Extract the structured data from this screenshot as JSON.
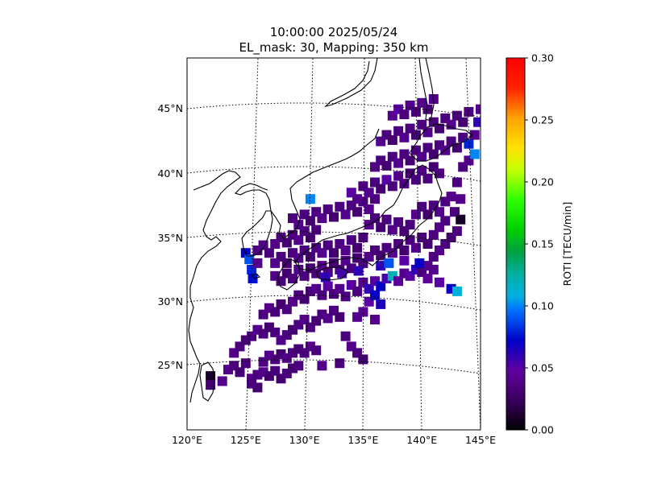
{
  "chart_data": {
    "type": "heatmap",
    "title": "10:00:00 2025/05/24",
    "subtitle": "EL_mask: 30, Mapping: 350 km",
    "x_ticks": [
      "120°E",
      "125°E",
      "130°E",
      "135°E",
      "140°E",
      "145°E"
    ],
    "x_tick_values": [
      120,
      125,
      130,
      135,
      140,
      145
    ],
    "y_ticks": [
      "25°N",
      "30°N",
      "35°N",
      "40°N",
      "45°N"
    ],
    "y_tick_values": [
      25,
      30,
      35,
      40,
      45
    ],
    "xlim": [
      120,
      145
    ],
    "ylim": [
      20,
      49
    ],
    "grid": true,
    "colorbar": {
      "label": "ROTI [TECU/min]",
      "min": 0.0,
      "max": 0.3,
      "ticks": [
        "0.00",
        "0.05",
        "0.10",
        "0.15",
        "0.20",
        "0.25",
        "0.30"
      ],
      "tick_values": [
        0.0,
        0.05,
        0.1,
        0.15,
        0.2,
        0.25,
        0.3
      ],
      "colormap": "nipy_spectral"
    },
    "pixels": [
      [
        125.5,
        24.0,
        0.04
      ],
      [
        126.0,
        24.3,
        0.035
      ],
      [
        126.5,
        24.5,
        0.04
      ],
      [
        127.0,
        24.2,
        0.03
      ],
      [
        127.5,
        24.6,
        0.035
      ],
      [
        128.0,
        24.0,
        0.03
      ],
      [
        128.5,
        24.4,
        0.035
      ],
      [
        129.0,
        24.8,
        0.03
      ],
      [
        129.5,
        25.0,
        0.035
      ],
      [
        123.5,
        24.7,
        0.04
      ],
      [
        124.0,
        25.0,
        0.035
      ],
      [
        124.5,
        24.5,
        0.03
      ],
      [
        125.0,
        25.2,
        0.035
      ],
      [
        122.0,
        24.2,
        0.01
      ],
      [
        122.0,
        23.5,
        0.03
      ],
      [
        123.0,
        23.8,
        0.04
      ],
      [
        125.5,
        23.6,
        0.035
      ],
      [
        126.0,
        23.3,
        0.03
      ],
      [
        126.5,
        25.3,
        0.035
      ],
      [
        127.0,
        25.8,
        0.04
      ],
      [
        127.5,
        25.5,
        0.035
      ],
      [
        128.0,
        25.9,
        0.03
      ],
      [
        128.5,
        25.6,
        0.04
      ],
      [
        129.0,
        26.0,
        0.035
      ],
      [
        129.5,
        26.3,
        0.03
      ],
      [
        130.0,
        26.0,
        0.035
      ],
      [
        130.5,
        26.5,
        0.04
      ],
      [
        131.0,
        26.2,
        0.035
      ],
      [
        124.0,
        26.0,
        0.04
      ],
      [
        124.5,
        26.5,
        0.035
      ],
      [
        125.0,
        27.0,
        0.03
      ],
      [
        125.5,
        27.3,
        0.035
      ],
      [
        126.0,
        27.8,
        0.04
      ],
      [
        126.5,
        27.5,
        0.035
      ],
      [
        127.0,
        28.0,
        0.03
      ],
      [
        127.5,
        27.6,
        0.035
      ],
      [
        128.0,
        27.0,
        0.04
      ],
      [
        128.5,
        27.4,
        0.035
      ],
      [
        129.0,
        27.8,
        0.03
      ],
      [
        129.5,
        28.2,
        0.035
      ],
      [
        130.0,
        28.6,
        0.04
      ],
      [
        130.5,
        28.0,
        0.035
      ],
      [
        131.0,
        28.5,
        0.03
      ],
      [
        131.5,
        29.0,
        0.035
      ],
      [
        132.0,
        28.7,
        0.04
      ],
      [
        132.5,
        29.3,
        0.035
      ],
      [
        133.0,
        28.8,
        0.03
      ],
      [
        133.5,
        27.3,
        0.035
      ],
      [
        134.0,
        26.5,
        0.04
      ],
      [
        134.5,
        26.0,
        0.035
      ],
      [
        135.0,
        25.5,
        0.03
      ],
      [
        133.0,
        25.2,
        0.035
      ],
      [
        131.5,
        25.0,
        0.04
      ],
      [
        126.5,
        29.0,
        0.035
      ],
      [
        127.0,
        29.5,
        0.04
      ],
      [
        127.5,
        29.2,
        0.035
      ],
      [
        128.0,
        29.8,
        0.03
      ],
      [
        128.5,
        29.4,
        0.035
      ],
      [
        129.0,
        30.0,
        0.04
      ],
      [
        129.5,
        30.5,
        0.035
      ],
      [
        130.0,
        30.2,
        0.03
      ],
      [
        130.5,
        30.8,
        0.035
      ],
      [
        131.0,
        31.0,
        0.04
      ],
      [
        131.5,
        30.5,
        0.035
      ],
      [
        132.0,
        31.2,
        0.05
      ],
      [
        132.5,
        30.6,
        0.035
      ],
      [
        133.0,
        31.0,
        0.04
      ],
      [
        133.5,
        30.4,
        0.035
      ],
      [
        134.0,
        31.3,
        0.05
      ],
      [
        134.5,
        30.8,
        0.035
      ],
      [
        135.0,
        31.5,
        0.04
      ],
      [
        135.5,
        31.0,
        0.06
      ],
      [
        136.0,
        31.6,
        0.05
      ],
      [
        136.5,
        31.2,
        0.07
      ],
      [
        137.0,
        31.8,
        0.055
      ],
      [
        137.5,
        32.0,
        0.12
      ],
      [
        138.0,
        31.6,
        0.045
      ],
      [
        138.5,
        32.2,
        0.04
      ],
      [
        139.0,
        32.0,
        0.05
      ],
      [
        139.5,
        32.5,
        0.06
      ],
      [
        135.5,
        30.0,
        0.05
      ],
      [
        136.0,
        30.5,
        0.07
      ],
      [
        136.5,
        29.8,
        0.065
      ],
      [
        135.0,
        29.2,
        0.045
      ],
      [
        134.5,
        28.8,
        0.04
      ],
      [
        136.0,
        28.6,
        0.04
      ],
      [
        140.0,
        32.3,
        0.035
      ],
      [
        140.5,
        32.8,
        0.04
      ],
      [
        141.0,
        33.5,
        0.035
      ],
      [
        141.5,
        34.0,
        0.04
      ],
      [
        142.0,
        34.5,
        0.035
      ],
      [
        142.5,
        35.0,
        0.03
      ],
      [
        143.0,
        35.5,
        0.035
      ],
      [
        142.5,
        31.0,
        0.07
      ],
      [
        143.0,
        30.8,
        0.11
      ],
      [
        141.5,
        31.5,
        0.05
      ],
      [
        140.5,
        31.8,
        0.045
      ],
      [
        141.0,
        32.5,
        0.04
      ],
      [
        125.0,
        33.8,
        0.07
      ],
      [
        125.3,
        33.3,
        0.09
      ],
      [
        125.5,
        32.5,
        0.08
      ],
      [
        125.6,
        31.8,
        0.075
      ],
      [
        126.0,
        33.0,
        0.04
      ],
      [
        126.0,
        34.0,
        0.035
      ],
      [
        126.5,
        34.4,
        0.04
      ],
      [
        127.0,
        33.8,
        0.035
      ],
      [
        127.5,
        34.5,
        0.04
      ],
      [
        128.0,
        35.0,
        0.035
      ],
      [
        128.5,
        34.6,
        0.03
      ],
      [
        129.0,
        35.2,
        0.035
      ],
      [
        129.5,
        34.8,
        0.04
      ],
      [
        130.0,
        35.5,
        0.035
      ],
      [
        130.5,
        35.0,
        0.03
      ],
      [
        131.0,
        35.6,
        0.035
      ],
      [
        127.5,
        33.0,
        0.04
      ],
      [
        128.0,
        33.5,
        0.035
      ],
      [
        128.5,
        33.0,
        0.03
      ],
      [
        129.0,
        33.8,
        0.035
      ],
      [
        129.5,
        33.4,
        0.04
      ],
      [
        130.0,
        34.0,
        0.035
      ],
      [
        130.5,
        33.5,
        0.03
      ],
      [
        131.0,
        34.2,
        0.035
      ],
      [
        131.5,
        33.8,
        0.04
      ],
      [
        132.0,
        34.4,
        0.035
      ],
      [
        132.5,
        33.8,
        0.03
      ],
      [
        133.0,
        34.5,
        0.035
      ],
      [
        133.5,
        34.0,
        0.04
      ],
      [
        134.0,
        34.8,
        0.035
      ],
      [
        134.5,
        34.2,
        0.03
      ],
      [
        135.0,
        35.0,
        0.035
      ],
      [
        127.5,
        32.0,
        0.04
      ],
      [
        128.0,
        31.6,
        0.035
      ],
      [
        128.5,
        32.2,
        0.03
      ],
      [
        129.0,
        31.8,
        0.035
      ],
      [
        129.5,
        32.5,
        0.04
      ],
      [
        130.0,
        32.0,
        0.035
      ],
      [
        130.5,
        32.6,
        0.03
      ],
      [
        131.0,
        32.2,
        0.035
      ],
      [
        131.5,
        32.8,
        0.04
      ],
      [
        132.0,
        32.3,
        0.035
      ],
      [
        132.5,
        33.0,
        0.03
      ],
      [
        133.0,
        32.5,
        0.035
      ],
      [
        133.5,
        33.2,
        0.04
      ],
      [
        134.0,
        32.6,
        0.035
      ],
      [
        134.5,
        33.4,
        0.03
      ],
      [
        135.0,
        33.0,
        0.035
      ],
      [
        135.5,
        33.5,
        0.04
      ],
      [
        136.0,
        34.0,
        0.035
      ],
      [
        136.5,
        33.6,
        0.03
      ],
      [
        137.0,
        34.2,
        0.035
      ],
      [
        137.5,
        33.8,
        0.04
      ],
      [
        138.0,
        34.5,
        0.035
      ],
      [
        138.5,
        34.0,
        0.03
      ],
      [
        139.0,
        34.8,
        0.035
      ],
      [
        139.5,
        34.2,
        0.04
      ],
      [
        140.0,
        35.0,
        0.035
      ],
      [
        140.5,
        34.5,
        0.03
      ],
      [
        141.0,
        35.2,
        0.035
      ],
      [
        141.5,
        35.8,
        0.04
      ],
      [
        142.0,
        36.3,
        0.035
      ],
      [
        129.0,
        36.5,
        0.035
      ],
      [
        129.5,
        36.0,
        0.04
      ],
      [
        130.0,
        36.8,
        0.035
      ],
      [
        130.5,
        36.3,
        0.03
      ],
      [
        131.0,
        37.0,
        0.035
      ],
      [
        130.5,
        38.0,
        0.1
      ],
      [
        131.5,
        36.5,
        0.04
      ],
      [
        132.0,
        37.2,
        0.035
      ],
      [
        132.5,
        36.6,
        0.03
      ],
      [
        133.0,
        37.4,
        0.035
      ],
      [
        133.5,
        36.8,
        0.04
      ],
      [
        134.0,
        37.5,
        0.035
      ],
      [
        134.5,
        37.0,
        0.03
      ],
      [
        135.0,
        37.8,
        0.035
      ],
      [
        135.5,
        37.2,
        0.04
      ],
      [
        136.0,
        38.0,
        0.035
      ],
      [
        135.5,
        36.0,
        0.04
      ],
      [
        136.0,
        36.5,
        0.035
      ],
      [
        136.5,
        35.8,
        0.03
      ],
      [
        137.0,
        36.4,
        0.035
      ],
      [
        137.5,
        35.6,
        0.04
      ],
      [
        138.0,
        36.2,
        0.035
      ],
      [
        138.5,
        35.5,
        0.03
      ],
      [
        139.0,
        36.0,
        0.035
      ],
      [
        139.5,
        36.8,
        0.04
      ],
      [
        140.0,
        37.4,
        0.035
      ],
      [
        140.5,
        36.8,
        0.03
      ],
      [
        141.0,
        37.5,
        0.035
      ],
      [
        141.5,
        37.0,
        0.04
      ],
      [
        142.0,
        37.8,
        0.035
      ],
      [
        142.5,
        38.2,
        0.04
      ],
      [
        134.0,
        38.5,
        0.05
      ],
      [
        134.5,
        38.0,
        0.04
      ],
      [
        135.0,
        39.0,
        0.035
      ],
      [
        135.5,
        38.5,
        0.04
      ],
      [
        136.0,
        39.3,
        0.035
      ],
      [
        136.5,
        38.8,
        0.03
      ],
      [
        137.0,
        39.5,
        0.05
      ],
      [
        137.5,
        39.0,
        0.035
      ],
      [
        138.0,
        39.8,
        0.04
      ],
      [
        138.5,
        39.2,
        0.035
      ],
      [
        139.0,
        40.0,
        0.03
      ],
      [
        139.5,
        39.5,
        0.035
      ],
      [
        140.0,
        40.2,
        0.04
      ],
      [
        140.5,
        39.6,
        0.035
      ],
      [
        141.0,
        40.5,
        0.03
      ],
      [
        141.5,
        40.0,
        0.035
      ],
      [
        136.0,
        40.5,
        0.04
      ],
      [
        136.5,
        41.0,
        0.035
      ],
      [
        137.0,
        40.6,
        0.03
      ],
      [
        137.5,
        41.3,
        0.035
      ],
      [
        138.0,
        40.8,
        0.04
      ],
      [
        138.5,
        41.5,
        0.035
      ],
      [
        139.0,
        41.0,
        0.03
      ],
      [
        139.5,
        41.8,
        0.035
      ],
      [
        140.0,
        41.3,
        0.04
      ],
      [
        140.5,
        42.0,
        0.035
      ],
      [
        141.0,
        41.5,
        0.03
      ],
      [
        141.5,
        42.2,
        0.035
      ],
      [
        142.0,
        41.8,
        0.04
      ],
      [
        142.5,
        42.5,
        0.035
      ],
      [
        143.0,
        42.0,
        0.03
      ],
      [
        143.5,
        42.8,
        0.035
      ],
      [
        136.5,
        42.5,
        0.04
      ],
      [
        137.0,
        43.0,
        0.035
      ],
      [
        137.5,
        42.6,
        0.03
      ],
      [
        138.0,
        43.3,
        0.035
      ],
      [
        138.5,
        42.8,
        0.04
      ],
      [
        139.0,
        43.5,
        0.035
      ],
      [
        139.5,
        43.0,
        0.03
      ],
      [
        140.0,
        43.8,
        0.035
      ],
      [
        140.5,
        43.2,
        0.04
      ],
      [
        141.0,
        44.0,
        0.035
      ],
      [
        141.5,
        43.5,
        0.03
      ],
      [
        142.0,
        44.3,
        0.035
      ],
      [
        142.5,
        43.8,
        0.04
      ],
      [
        143.0,
        44.5,
        0.035
      ],
      [
        143.5,
        44.0,
        0.03
      ],
      [
        144.0,
        44.8,
        0.035
      ],
      [
        137.5,
        44.5,
        0.04
      ],
      [
        138.0,
        45.0,
        0.05
      ],
      [
        138.5,
        44.6,
        0.035
      ],
      [
        139.0,
        45.3,
        0.04
      ],
      [
        139.5,
        44.8,
        0.035
      ],
      [
        140.0,
        45.5,
        0.04
      ],
      [
        140.5,
        45.0,
        0.035
      ],
      [
        141.0,
        45.8,
        0.04
      ],
      [
        143.5,
        40.5,
        0.035
      ],
      [
        144.0,
        41.0,
        0.04
      ],
      [
        144.5,
        41.5,
        0.1
      ],
      [
        144.0,
        42.3,
        0.08
      ],
      [
        144.5,
        43.0,
        0.04
      ],
      [
        144.8,
        44.0,
        0.06
      ],
      [
        145.0,
        45.0,
        0.04
      ],
      [
        143.0,
        39.3,
        0.035
      ],
      [
        143.3,
        38.0,
        0.04
      ],
      [
        142.8,
        37.0,
        0.035
      ],
      [
        143.3,
        36.4,
        0.01
      ],
      [
        136.5,
        32.8,
        0.06
      ],
      [
        137.2,
        33.0,
        0.09
      ],
      [
        138.5,
        33.2,
        0.05
      ],
      [
        139.8,
        33.0,
        0.07
      ],
      [
        134.6,
        32.4,
        0.06
      ],
      [
        133.2,
        32.2,
        0.055
      ],
      [
        131.8,
        31.9,
        0.06
      ]
    ]
  }
}
